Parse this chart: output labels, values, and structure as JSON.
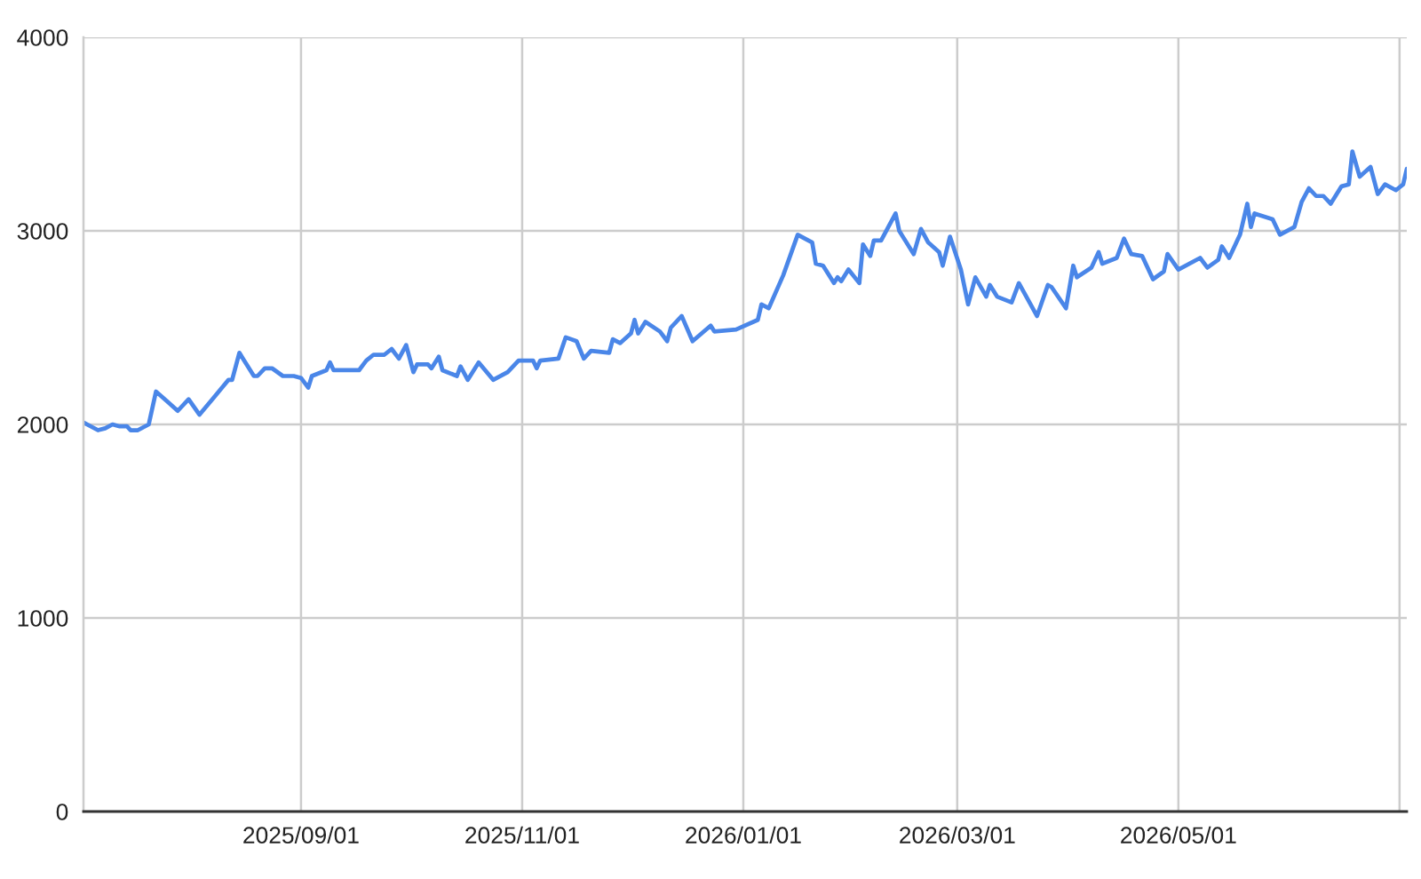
{
  "chart_data": {
    "type": "line",
    "x": [
      "2025-07-03",
      "2025-07-07",
      "2025-07-09",
      "2025-07-11",
      "2025-07-13",
      "2025-07-15",
      "2025-07-16",
      "2025-07-18",
      "2025-07-21",
      "2025-07-23",
      "2025-07-26",
      "2025-07-29",
      "2025-08-01",
      "2025-08-04",
      "2025-08-08",
      "2025-08-12",
      "2025-08-13",
      "2025-08-15",
      "2025-08-16",
      "2025-08-19",
      "2025-08-20",
      "2025-08-22",
      "2025-08-24",
      "2025-08-27",
      "2025-08-30",
      "2025-09-01",
      "2025-09-03",
      "2025-09-04",
      "2025-09-08",
      "2025-09-09",
      "2025-09-10",
      "2025-09-15",
      "2025-09-17",
      "2025-09-19",
      "2025-09-21",
      "2025-09-24",
      "2025-09-26",
      "2025-09-28",
      "2025-09-30",
      "2025-10-02",
      "2025-10-03",
      "2025-10-06",
      "2025-10-07",
      "2025-10-09",
      "2025-10-10",
      "2025-10-14",
      "2025-10-15",
      "2025-10-17",
      "2025-10-20",
      "2025-10-24",
      "2025-10-28",
      "2025-10-31",
      "2025-11-04",
      "2025-11-05",
      "2025-11-06",
      "2025-11-11",
      "2025-11-13",
      "2025-11-16",
      "2025-11-18",
      "2025-11-20",
      "2025-11-25",
      "2025-11-26",
      "2025-11-28",
      "2025-12-01",
      "2025-12-02",
      "2025-12-03",
      "2025-12-05",
      "2025-12-09",
      "2025-12-11",
      "2025-12-12",
      "2025-12-15",
      "2025-12-18",
      "2025-12-23",
      "2025-12-24",
      "2025-12-30",
      "2026-01-05",
      "2026-01-06",
      "2026-01-08",
      "2026-01-12",
      "2026-01-16",
      "2026-01-20",
      "2026-01-21",
      "2026-01-23",
      "2026-01-26",
      "2026-01-27",
      "2026-01-28",
      "2026-01-30",
      "2026-02-02",
      "2026-02-03",
      "2026-02-05",
      "2026-02-06",
      "2026-02-08",
      "2026-02-10",
      "2026-02-12",
      "2026-02-13",
      "2026-02-17",
      "2026-02-19",
      "2026-02-21",
      "2026-02-24",
      "2026-02-25",
      "2026-02-27",
      "2026-03-02",
      "2026-03-04",
      "2026-03-06",
      "2026-03-09",
      "2026-03-10",
      "2026-03-12",
      "2026-03-16",
      "2026-03-18",
      "2026-03-23",
      "2026-03-26",
      "2026-03-27",
      "2026-03-31",
      "2026-04-02",
      "2026-04-03",
      "2026-04-07",
      "2026-04-09",
      "2026-04-10",
      "2026-04-14",
      "2026-04-16",
      "2026-04-18",
      "2026-04-21",
      "2026-04-24",
      "2026-04-27",
      "2026-04-28",
      "2026-05-01",
      "2026-05-07",
      "2026-05-09",
      "2026-05-12",
      "2026-05-13",
      "2026-05-15",
      "2026-05-17",
      "2026-05-18",
      "2026-05-20",
      "2026-05-21",
      "2026-05-22",
      "2026-05-27",
      "2026-05-29",
      "2026-06-02",
      "2026-06-04",
      "2026-06-06",
      "2026-06-08",
      "2026-06-10",
      "2026-06-12",
      "2026-06-15",
      "2026-06-17",
      "2026-06-18",
      "2026-06-20",
      "2026-06-23",
      "2026-06-25",
      "2026-06-27",
      "2026-06-30",
      "2026-07-02",
      "2026-07-03"
    ],
    "series": [
      {
        "color": "#4a86e8",
        "values": [
          2010,
          1970,
          1980,
          2000,
          1990,
          1990,
          1970,
          1970,
          2000,
          2170,
          2120,
          2070,
          2130,
          2050,
          2140,
          2230,
          2230,
          2370,
          2340,
          2250,
          2250,
          2290,
          2290,
          2250,
          2250,
          2240,
          2190,
          2250,
          2280,
          2320,
          2280,
          2280,
          2280,
          2330,
          2360,
          2360,
          2390,
          2340,
          2410,
          2270,
          2310,
          2310,
          2290,
          2350,
          2280,
          2250,
          2300,
          2230,
          2320,
          2230,
          2270,
          2330,
          2330,
          2290,
          2330,
          2340,
          2450,
          2430,
          2340,
          2380,
          2370,
          2440,
          2420,
          2470,
          2540,
          2470,
          2530,
          2480,
          2430,
          2500,
          2560,
          2430,
          2510,
          2480,
          2490,
          2540,
          2620,
          2600,
          2770,
          2980,
          2940,
          2830,
          2820,
          2730,
          2760,
          2740,
          2800,
          2730,
          2930,
          2870,
          2950,
          2950,
          3020,
          3090,
          3000,
          2880,
          3010,
          2940,
          2890,
          2820,
          2970,
          2800,
          2620,
          2760,
          2660,
          2720,
          2660,
          2630,
          2730,
          2560,
          2720,
          2710,
          2600,
          2820,
          2760,
          2810,
          2890,
          2830,
          2860,
          2960,
          2880,
          2870,
          2750,
          2790,
          2880,
          2800,
          2860,
          2810,
          2850,
          2920,
          2860,
          2940,
          2980,
          3140,
          3020,
          3090,
          3060,
          2980,
          3020,
          3150,
          3220,
          3180,
          3180,
          3140,
          3230,
          3240,
          3410,
          3280,
          3330,
          3190,
          3240,
          3210,
          3240,
          3320
        ]
      }
    ],
    "xlim": [
      "2025-07-03",
      "2026-07-03"
    ],
    "xticks": [
      {
        "value": "2025-09-01",
        "label": "2025/09/01"
      },
      {
        "value": "2025-11-01",
        "label": "2025/11/01"
      },
      {
        "value": "2026-01-01",
        "label": "2026/01/01"
      },
      {
        "value": "2026-03-01",
        "label": "2026/03/01"
      },
      {
        "value": "2026-05-01",
        "label": "2026/05/01"
      },
      {
        "value": "2026-07-01",
        "label": null
      }
    ],
    "ylim": [
      0,
      4000
    ],
    "yticks": [
      0,
      1000,
      2000,
      3000,
      4000
    ],
    "grid": true
  }
}
